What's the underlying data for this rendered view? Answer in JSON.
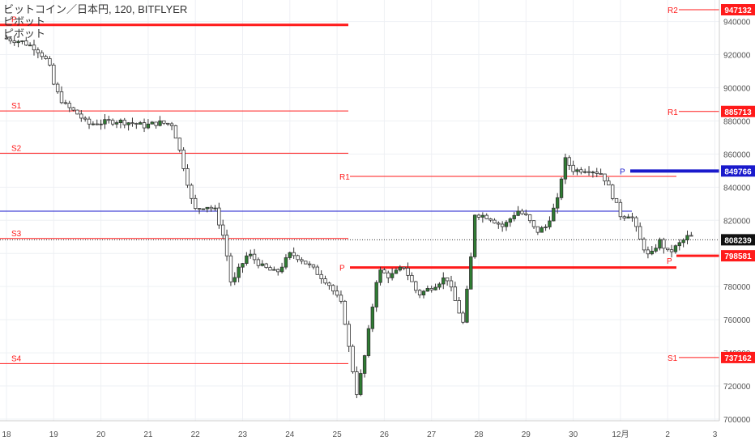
{
  "header": {
    "title": "ビットコイン／日本円, 120, BITFLYER",
    "indicators": [
      "ピボット",
      "ピボット"
    ]
  },
  "colors": {
    "pivot_red": "#ff1a1a",
    "pivot_blue": "#1a1acc",
    "candle_up": "#2e7d32",
    "candle_down": "#ffffff",
    "candle_outline": "#333333"
  },
  "chart_data": {
    "type": "candlestick",
    "x_ticks": [
      "18",
      "19",
      "20",
      "21",
      "22",
      "23",
      "24",
      "25",
      "26",
      "27",
      "28",
      "29",
      "30",
      "12月",
      "2",
      "3"
    ],
    "y_ticks": [
      700000,
      720000,
      740000,
      760000,
      780000,
      800000,
      820000,
      840000,
      860000,
      880000,
      900000,
      920000,
      940000
    ],
    "ylim": [
      699000,
      953000
    ],
    "xlim": [
      18,
      3.1
    ],
    "last_price": 808239,
    "left_pivots": [
      {
        "label": "P",
        "value": 938000,
        "bold": true
      },
      {
        "label": "S1",
        "value": 886000
      },
      {
        "label": "S2",
        "value": 860500
      },
      {
        "label": "S3",
        "value": 809000
      },
      {
        "label": "S4",
        "value": 733500
      }
    ],
    "blue_line": 825500,
    "right_pivots": [
      {
        "label": "R2",
        "value": 947132,
        "axis_label": "947132"
      },
      {
        "label": "R1",
        "value": 885713,
        "axis_label": "885713"
      },
      {
        "label": "R1",
        "value": 846500,
        "axis_label": ""
      },
      {
        "label": "P",
        "value": 849766,
        "axis_label": "849766",
        "color": "blue"
      },
      {
        "label": "P",
        "value": 791500,
        "axis_label": ""
      },
      {
        "label": "P",
        "value": 798581,
        "axis_label": "798581"
      },
      {
        "label": "S1",
        "value": 737162,
        "axis_label": "737162"
      }
    ],
    "price_path": [
      [
        18.0,
        930000
      ],
      [
        18.4,
        928000
      ],
      [
        18.7,
        924000
      ],
      [
        18.9,
        918000
      ],
      [
        19.0,
        912000
      ],
      [
        19.1,
        900000
      ],
      [
        19.3,
        890000
      ],
      [
        19.6,
        884000
      ],
      [
        19.8,
        878000
      ],
      [
        20.1,
        879000
      ],
      [
        20.4,
        880000
      ],
      [
        20.7,
        879000
      ],
      [
        21.0,
        877000
      ],
      [
        21.3,
        879000
      ],
      [
        21.6,
        878000
      ],
      [
        21.75,
        862000
      ],
      [
        21.9,
        845000
      ],
      [
        22.05,
        826000
      ],
      [
        22.3,
        829000
      ],
      [
        22.5,
        826000
      ],
      [
        22.7,
        808000
      ],
      [
        22.85,
        780000
      ],
      [
        23.0,
        790000
      ],
      [
        23.2,
        800000
      ],
      [
        23.5,
        792000
      ],
      [
        23.8,
        788000
      ],
      [
        24.1,
        800000
      ],
      [
        24.3,
        797000
      ],
      [
        24.6,
        790000
      ],
      [
        24.9,
        782000
      ],
      [
        25.2,
        768000
      ],
      [
        25.35,
        740000
      ],
      [
        25.5,
        716000
      ],
      [
        25.65,
        735000
      ],
      [
        25.8,
        762000
      ],
      [
        25.95,
        790000
      ],
      [
        26.2,
        786000
      ],
      [
        26.5,
        792000
      ],
      [
        26.8,
        775000
      ],
      [
        27.1,
        780000
      ],
      [
        27.4,
        786000
      ],
      [
        27.6,
        770000
      ],
      [
        27.75,
        758000
      ],
      [
        27.9,
        792000
      ],
      [
        28.0,
        824000
      ],
      [
        28.3,
        822000
      ],
      [
        28.6,
        816000
      ],
      [
        28.9,
        826000
      ],
      [
        29.1,
        822000
      ],
      [
        29.3,
        813000
      ],
      [
        29.5,
        816000
      ],
      [
        29.75,
        832000
      ],
      [
        29.9,
        857000
      ],
      [
        30.1,
        850000
      ],
      [
        30.4,
        851000
      ],
      [
        30.7,
        848000
      ],
      [
        30.9,
        836000
      ],
      [
        31.1,
        822000
      ],
      [
        31.3,
        824000
      ],
      [
        31.5,
        808000
      ],
      [
        31.7,
        797000
      ],
      [
        31.9,
        808000
      ],
      [
        32.1,
        800000
      ],
      [
        32.3,
        805000
      ],
      [
        32.5,
        810000
      ]
    ]
  }
}
